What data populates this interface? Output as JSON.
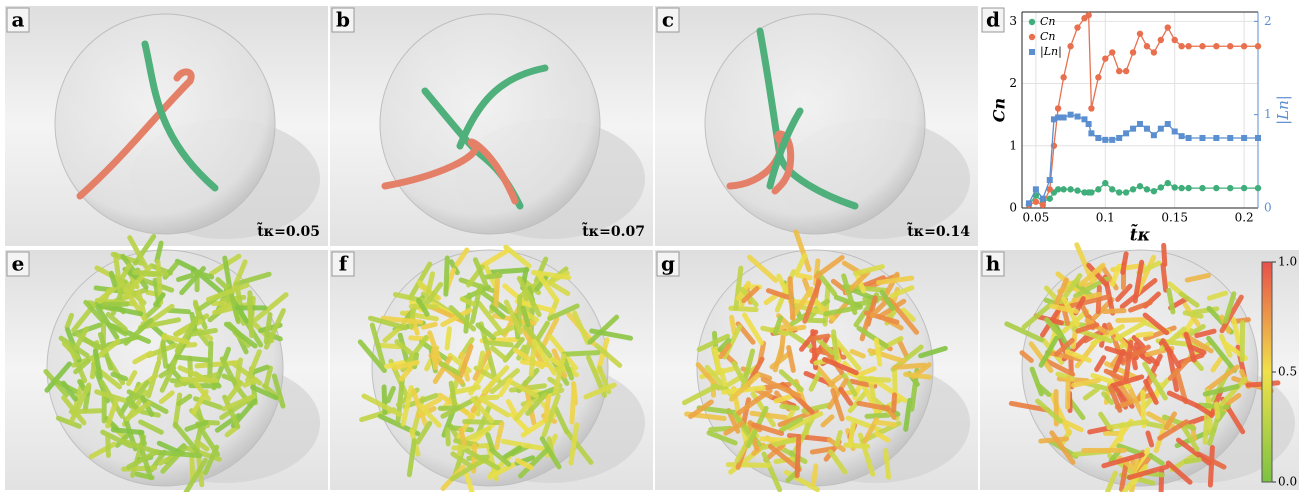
{
  "panels": [
    {
      "label": "a",
      "time": "t̃κ=0.05"
    },
    {
      "label": "b",
      "time": "t̃κ=0.07"
    },
    {
      "label": "c",
      "time": "t̃κ=0.14"
    },
    {
      "label": "d"
    },
    {
      "label": "e"
    },
    {
      "label": "f"
    },
    {
      "label": "g"
    },
    {
      "label": "h"
    }
  ],
  "colorbar": {
    "lim": [
      0,
      1
    ],
    "ticks": [
      {
        "value": 1,
        "label": "1.0"
      },
      0.5,
      {
        "value": 0,
        "label": "0.0"
      }
    ]
  },
  "chart_data": {
    "type": "line",
    "xlabel": "t̃κ",
    "ylabel": "Cn",
    "y2label": "|Ln|",
    "x": [
      0.045,
      0.05,
      0.055,
      0.06,
      0.063,
      0.066,
      0.07,
      0.075,
      0.08,
      0.085,
      0.088,
      0.09,
      0.095,
      0.1,
      0.105,
      0.11,
      0.115,
      0.12,
      0.125,
      0.13,
      0.135,
      0.14,
      0.145,
      0.15,
      0.155,
      0.16,
      0.17,
      0.18,
      0.19,
      0.2,
      0.21
    ],
    "series": [
      {
        "name": "Cn",
        "color": "#3fae7a",
        "marker": "circle",
        "values": [
          0.05,
          0.2,
          0.1,
          0.15,
          0.25,
          0.3,
          0.3,
          0.3,
          0.28,
          0.25,
          0.25,
          0.25,
          0.3,
          0.4,
          0.3,
          0.25,
          0.25,
          0.3,
          0.35,
          0.3,
          0.27,
          0.33,
          0.4,
          0.33,
          0.32,
          0.32,
          0.32,
          0.32,
          0.32,
          0.32,
          0.32
        ]
      },
      {
        "name": "Cn",
        "color": "#e8704e",
        "marker": "circle",
        "values": [
          0.05,
          0.1,
          0.05,
          0.3,
          1.0,
          1.6,
          2.1,
          2.6,
          2.9,
          3.05,
          3.1,
          1.6,
          2.1,
          2.4,
          2.5,
          2.2,
          2.2,
          2.5,
          2.8,
          2.6,
          2.5,
          2.7,
          2.9,
          2.7,
          2.6,
          2.6,
          2.6,
          2.6,
          2.6,
          2.6,
          2.6
        ]
      },
      {
        "name": "|Ln|",
        "color": "#5b8fd0",
        "marker": "square",
        "axis": "y2",
        "values": [
          0.05,
          0.2,
          0.1,
          0.3,
          0.95,
          0.97,
          0.97,
          1.0,
          0.98,
          0.95,
          0.9,
          0.8,
          0.75,
          0.73,
          0.73,
          0.75,
          0.8,
          0.85,
          0.9,
          0.85,
          0.78,
          0.85,
          0.9,
          0.82,
          0.77,
          0.75,
          0.75,
          0.75,
          0.75,
          0.75,
          0.75
        ]
      }
    ],
    "xlim": [
      0.04,
      0.21
    ],
    "xticks": [
      0.05,
      0.1,
      0.15,
      0.2
    ],
    "ylim": [
      0,
      3.15
    ],
    "yticks": [
      0,
      1,
      2,
      3
    ],
    "y2lim": [
      0,
      2.1
    ],
    "y2ticks": [
      0,
      1,
      2
    ],
    "grid": true,
    "legend": "upper-left"
  }
}
